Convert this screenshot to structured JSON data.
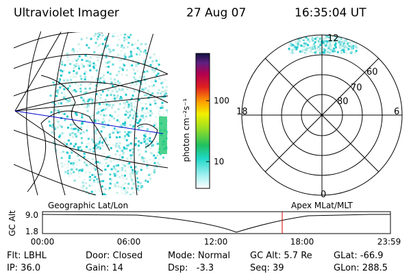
{
  "header": {
    "instrument": "Ultraviolet Imager",
    "date": "27 Aug 07",
    "time": "16:35:04 UT"
  },
  "colorbar": {
    "label": "photon cm⁻²s⁻¹",
    "ticks": [
      "100",
      "10"
    ]
  },
  "polar": {
    "labels": [
      "12",
      "6",
      "0",
      "18"
    ],
    "rings": [
      "60",
      "70",
      "80"
    ]
  },
  "altitude_plot": {
    "left_title": "Geographic Lat/Lon",
    "right_title": "Apex MLat/MLT",
    "y_label": "GC Alt",
    "y_ticks": [
      "9.0",
      "1.8"
    ],
    "x_ticks": [
      "00:00",
      "06:00",
      "12:00",
      "18:00",
      "23:59"
    ]
  },
  "info": {
    "rows": [
      [
        "Flt: LBHL",
        "Door: Closed",
        "Mode: Normal",
        "GC Alt: 5.7 Re",
        "GLat: -66.9"
      ],
      [
        "IP: 36.0",
        "Gain: 14",
        "Dsp:   -3.3",
        "Seq: 39",
        "GLon: 288.5"
      ]
    ]
  }
}
